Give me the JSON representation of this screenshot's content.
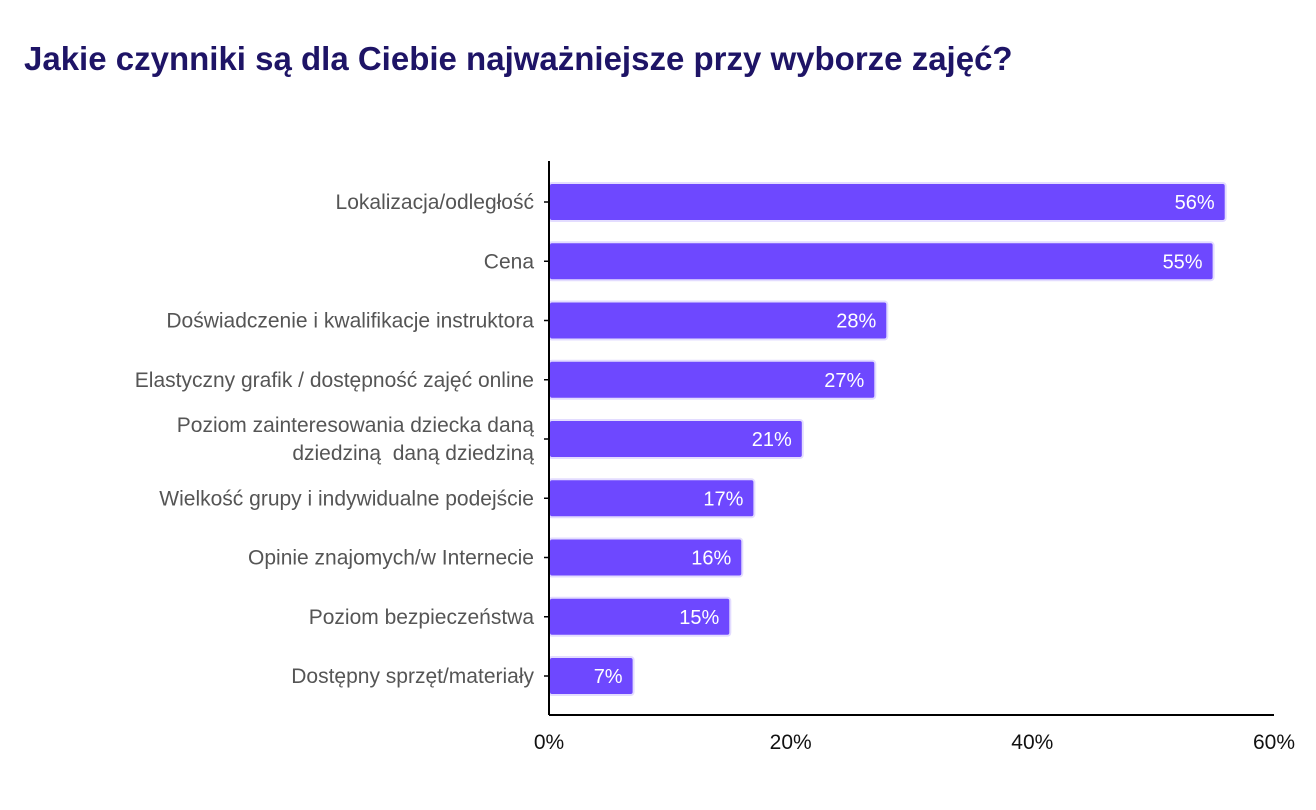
{
  "colors": {
    "title": "#1e1466",
    "bar": "#6e48ff",
    "bar_edge": "#e3dcff",
    "axis": "#000000",
    "category_text": "#555555",
    "value_text": "#ffffff"
  },
  "chart_data": {
    "type": "bar",
    "orientation": "horizontal",
    "title": "Jakie czynniki są dla Ciebie najważniejsze przy wyborze zajęć?",
    "xlabel": "",
    "ylabel": "",
    "categories": [
      [
        "Lokalizacja/odległość"
      ],
      [
        "Cena"
      ],
      [
        "Doświadczenie i kwalifikacje instruktora"
      ],
      [
        "Elastyczny grafik / dostępność zajęć online"
      ],
      [
        "Poziom zainteresowania dziecka daną",
        "dziedziną  daną dziedziną"
      ],
      [
        "Wielkość grupy i indywidualne podejście"
      ],
      [
        "Opinie znajomych/w Internecie"
      ],
      [
        "Poziom bezpieczeństwa"
      ],
      [
        "Dostępny sprzęt/materiały"
      ]
    ],
    "values": [
      56,
      55,
      28,
      27,
      21,
      17,
      16,
      15,
      7
    ],
    "value_labels": [
      "56%",
      "55%",
      "28%",
      "27%",
      "21%",
      "17%",
      "16%",
      "15%",
      "7%"
    ],
    "xlim": [
      0,
      60
    ],
    "xticks": [
      0,
      20,
      40,
      60
    ],
    "xtick_labels": [
      "0%",
      "20%",
      "40%",
      "60%"
    ],
    "grid": false,
    "legend": "none"
  }
}
